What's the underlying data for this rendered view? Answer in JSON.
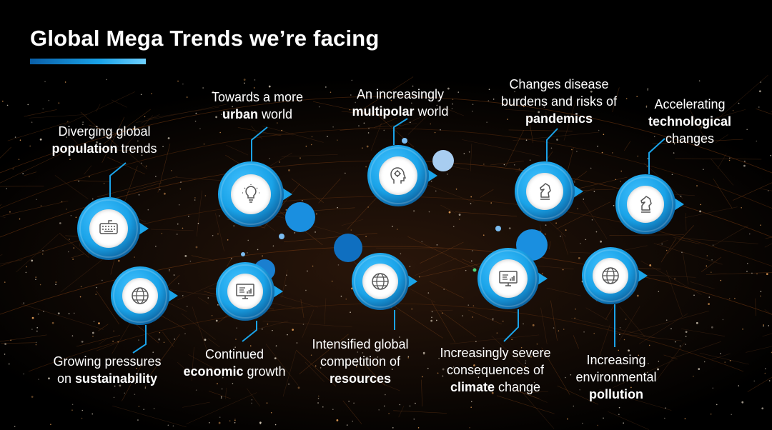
{
  "title": "Global Mega Trends we’re facing",
  "colors": {
    "accent": "#1aa3e8",
    "accent_dark": "#0b5a96",
    "background": "#000000"
  },
  "trends": [
    {
      "id": "population",
      "line1": "Diverging global",
      "line2_bold": "population",
      "line2_rest": " trends",
      "line3_pre": "",
      "line3_bold": "",
      "line3_rest": "",
      "icon": "keyboard-icon"
    },
    {
      "id": "urban",
      "line1": "Towards a more",
      "line2_bold": "urban",
      "line2_rest": " world",
      "line3_pre": "",
      "line3_bold": "",
      "line3_rest": "",
      "icon": "lightbulb-icon"
    },
    {
      "id": "multipolar",
      "line1": "An increasingly",
      "line2_bold": "multipolar",
      "line2_rest": " world",
      "line3_pre": "",
      "line3_bold": "",
      "line3_rest": "",
      "icon": "head-gear-icon"
    },
    {
      "id": "pandemics",
      "line1": "Changes disease",
      "line2_bold": "",
      "line2_rest": "burdens and risks of",
      "line3_pre": "",
      "line3_bold": "pandemics",
      "line3_rest": "",
      "icon": "chess-knight-icon"
    },
    {
      "id": "technological",
      "line1": "Accelerating",
      "line2_bold": "technological",
      "line2_rest": "",
      "line3_pre": "",
      "line3_bold": "",
      "line3_rest": "changes",
      "icon": "chess-knight-icon"
    },
    {
      "id": "sustainability",
      "line1": "Growing pressures",
      "line2_bold": "sustainability",
      "line2_rest": "",
      "line2_pre": "on ",
      "line3_pre": "",
      "line3_bold": "",
      "line3_rest": "",
      "icon": "globe-icon"
    },
    {
      "id": "economic",
      "line1": "Continued",
      "line2_bold": "economic",
      "line2_rest": " growth",
      "line3_pre": "",
      "line3_bold": "",
      "line3_rest": "",
      "icon": "monitor-chart-icon"
    },
    {
      "id": "resources",
      "line1": "Intensified global",
      "line2_bold": "",
      "line2_rest": "competition of",
      "line3_pre": "",
      "line3_bold": "resources",
      "line3_rest": "",
      "icon": "globe-icon"
    },
    {
      "id": "climate",
      "line1": "Increasingly severe",
      "line2_bold": "",
      "line2_rest": "consequences of",
      "line3_pre": "",
      "line3_bold": "climate",
      "line3_rest": " change",
      "icon": "monitor-chart-icon"
    },
    {
      "id": "pollution",
      "line1": "Increasing",
      "line2_bold": "",
      "line2_rest": "environmental",
      "line3_pre": "",
      "line3_bold": "pollution",
      "line3_rest": "",
      "icon": "globe-icon"
    }
  ]
}
